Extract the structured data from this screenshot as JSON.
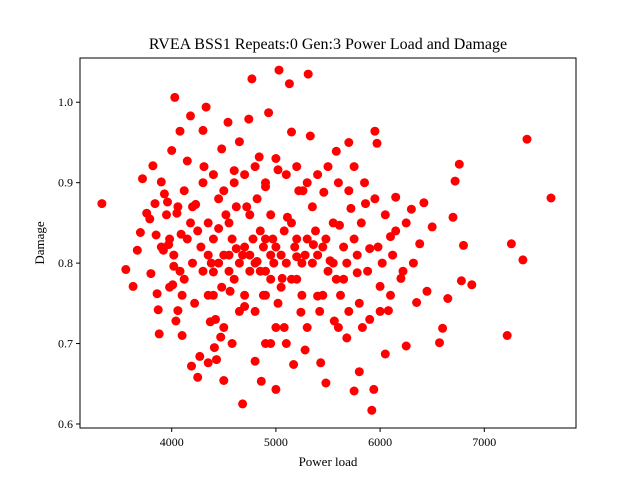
{
  "chart_data": {
    "type": "scatter",
    "title": "RVEA BSS1 Repeats:0 Gen:3 Power Load and Damage",
    "xlabel": "Power load",
    "ylabel": "Damage",
    "xlim": [
      3120,
      7880
    ],
    "ylim": [
      0.595,
      1.055
    ],
    "x_ticks": [
      4000,
      5000,
      6000,
      7000
    ],
    "y_ticks": [
      0.6,
      0.7,
      0.8,
      0.9,
      1.0
    ],
    "x_tick_labels": [
      "4000",
      "5000",
      "6000",
      "7000"
    ],
    "y_tick_labels": [
      "0.6",
      "0.7",
      "0.8",
      "0.9",
      "1.0"
    ],
    "grid": false,
    "legend": "none",
    "marker_color": "#ff0000",
    "series": [
      {
        "points": [
          [
            3330,
            0.874
          ],
          [
            3560,
            0.792
          ],
          [
            3630,
            0.771
          ],
          [
            3670,
            0.816
          ],
          [
            3700,
            0.838
          ],
          [
            3720,
            0.905
          ],
          [
            3760,
            0.862
          ],
          [
            3790,
            0.855
          ],
          [
            3800,
            0.787
          ],
          [
            3820,
            0.921
          ],
          [
            3840,
            0.874
          ],
          [
            3850,
            0.835
          ],
          [
            3860,
            0.762
          ],
          [
            3870,
            0.742
          ],
          [
            3880,
            0.712
          ],
          [
            3900,
            0.901
          ],
          [
            3920,
            0.816
          ],
          [
            3930,
            0.886
          ],
          [
            3960,
            0.876
          ],
          [
            3970,
            0.823
          ],
          [
            4000,
            0.94
          ],
          [
            4010,
            0.773
          ],
          [
            4020,
            0.796
          ],
          [
            4030,
            1.006
          ],
          [
            4040,
            0.728
          ],
          [
            4050,
            0.862
          ],
          [
            4060,
            0.741
          ],
          [
            4080,
            0.964
          ],
          [
            4090,
            0.836
          ],
          [
            4100,
            0.71
          ],
          [
            4120,
            0.78
          ],
          [
            4150,
            0.927
          ],
          [
            4180,
            0.983
          ],
          [
            4190,
            0.672
          ],
          [
            4230,
            0.873
          ],
          [
            4250,
            0.658
          ],
          [
            4270,
            0.684
          ],
          [
            4300,
            0.965
          ],
          [
            4310,
            0.92
          ],
          [
            4330,
            0.994
          ],
          [
            4350,
            0.676
          ],
          [
            4370,
            0.727
          ],
          [
            4400,
            0.789
          ],
          [
            4410,
            0.695
          ],
          [
            4430,
            0.68
          ],
          [
            4450,
            0.843
          ],
          [
            4470,
            0.708
          ],
          [
            4480,
            0.942
          ],
          [
            4500,
            0.654
          ],
          [
            4520,
            0.86
          ],
          [
            4540,
            0.975
          ],
          [
            4560,
            0.765
          ],
          [
            4580,
            0.7
          ],
          [
            4600,
            0.915
          ],
          [
            4620,
            0.818
          ],
          [
            4650,
            0.951
          ],
          [
            4680,
            0.625
          ],
          [
            4700,
            0.746
          ],
          [
            4720,
            0.87
          ],
          [
            4740,
            0.979
          ],
          [
            4770,
            1.029
          ],
          [
            4800,
            0.678
          ],
          [
            4820,
            0.802
          ],
          [
            4840,
            0.932
          ],
          [
            4860,
            0.653
          ],
          [
            4880,
            0.76
          ],
          [
            4900,
            0.895
          ],
          [
            4930,
            0.987
          ],
          [
            4950,
            0.7
          ],
          [
            4970,
            0.83
          ],
          [
            5000,
            0.643
          ],
          [
            5020,
            0.916
          ],
          [
            5030,
            1.04
          ],
          [
            5060,
            0.781
          ],
          [
            5080,
            0.72
          ],
          [
            5110,
            0.857
          ],
          [
            5130,
            1.023
          ],
          [
            5150,
            0.963
          ],
          [
            5170,
            0.674
          ],
          [
            5200,
            0.808
          ],
          [
            5240,
            0.739
          ],
          [
            5260,
            0.89
          ],
          [
            5280,
            0.692
          ],
          [
            5310,
            1.035
          ],
          [
            5330,
            0.958
          ],
          [
            5360,
            0.823
          ],
          [
            5400,
            0.759
          ],
          [
            5430,
            0.676
          ],
          [
            5460,
            0.888
          ],
          [
            5480,
            0.651
          ],
          [
            5520,
            0.803
          ],
          [
            5560,
            0.728
          ],
          [
            5580,
            0.939
          ],
          [
            5610,
            0.847
          ],
          [
            5650,
            0.78
          ],
          [
            5680,
            0.707
          ],
          [
            5700,
            0.95
          ],
          [
            5720,
            0.868
          ],
          [
            5750,
            0.641
          ],
          [
            5780,
            0.788
          ],
          [
            5800,
            0.665
          ],
          [
            5830,
            0.72
          ],
          [
            5860,
            0.874
          ],
          [
            5900,
            0.818
          ],
          [
            5920,
            0.617
          ],
          [
            5940,
            0.643
          ],
          [
            5950,
            0.964
          ],
          [
            5970,
            0.949
          ],
          [
            6000,
            0.771
          ],
          [
            6050,
            0.687
          ],
          [
            6080,
            0.741
          ],
          [
            6100,
            0.833
          ],
          [
            6150,
            0.882
          ],
          [
            6200,
            0.781
          ],
          [
            6250,
            0.697
          ],
          [
            6300,
            0.867
          ],
          [
            6350,
            0.751
          ],
          [
            6380,
            0.824
          ],
          [
            6420,
            0.875
          ],
          [
            6450,
            0.765
          ],
          [
            6500,
            0.845
          ],
          [
            6570,
            0.701
          ],
          [
            6600,
            0.719
          ],
          [
            6650,
            0.756
          ],
          [
            6700,
            0.857
          ],
          [
            6720,
            0.902
          ],
          [
            6760,
            0.923
          ],
          [
            6780,
            0.778
          ],
          [
            6800,
            0.822
          ],
          [
            6880,
            0.773
          ],
          [
            7220,
            0.71
          ],
          [
            7260,
            0.824
          ],
          [
            7370,
            0.804
          ],
          [
            7410,
            0.954
          ],
          [
            7640,
            0.881
          ],
          [
            4200,
            0.8
          ],
          [
            4300,
            0.79
          ],
          [
            4400,
            0.83
          ],
          [
            4500,
            0.81
          ],
          [
            4600,
            0.78
          ],
          [
            4700,
            0.82
          ],
          [
            4800,
            0.8
          ],
          [
            4900,
            0.79
          ],
          [
            5000,
            0.82
          ],
          [
            5100,
            0.8
          ],
          [
            5200,
            0.78
          ],
          [
            5300,
            0.83
          ],
          [
            5400,
            0.81
          ],
          [
            5500,
            0.79
          ],
          [
            4250,
            0.84
          ],
          [
            4350,
            0.76
          ],
          [
            4450,
            0.88
          ],
          [
            4550,
            0.85
          ],
          [
            4650,
            0.74
          ],
          [
            4750,
            0.86
          ],
          [
            4850,
            0.84
          ],
          [
            4950,
            0.86
          ],
          [
            5050,
            0.77
          ],
          [
            5150,
            0.85
          ],
          [
            5250,
            0.76
          ],
          [
            5350,
            0.87
          ],
          [
            5450,
            0.76
          ],
          [
            5550,
            0.85
          ],
          [
            5650,
            0.82
          ],
          [
            4150,
            0.83
          ],
          [
            4350,
            0.85
          ],
          [
            4550,
            0.81
          ],
          [
            4750,
            0.79
          ],
          [
            4950,
            0.81
          ],
          [
            5150,
            0.78
          ],
          [
            5350,
            0.8
          ],
          [
            5550,
            0.8
          ],
          [
            5750,
            0.83
          ],
          [
            4120,
            0.89
          ],
          [
            4220,
            0.75
          ],
          [
            4420,
            0.73
          ],
          [
            4620,
            0.87
          ],
          [
            4820,
            0.88
          ],
          [
            5020,
            0.75
          ],
          [
            5220,
            0.89
          ],
          [
            5420,
            0.74
          ],
          [
            5620,
            0.76
          ],
          [
            5820,
            0.85
          ],
          [
            4080,
            0.79
          ],
          [
            4180,
            0.85
          ],
          [
            4280,
            0.82
          ],
          [
            4380,
            0.8
          ],
          [
            4480,
            0.77
          ],
          [
            4580,
            0.83
          ],
          [
            4680,
            0.81
          ],
          [
            4780,
            0.83
          ],
          [
            4880,
            0.82
          ],
          [
            4980,
            0.8
          ],
          [
            5080,
            0.84
          ],
          [
            5180,
            0.82
          ],
          [
            5280,
            0.81
          ],
          [
            5380,
            0.84
          ],
          [
            5480,
            0.83
          ],
          [
            5580,
            0.78
          ],
          [
            5680,
            0.8
          ],
          [
            5780,
            0.81
          ],
          [
            5880,
            0.79
          ],
          [
            5980,
            0.82
          ],
          [
            3950,
            0.86
          ],
          [
            3980,
            0.83
          ],
          [
            4020,
            0.81
          ],
          [
            4060,
            0.87
          ],
          [
            6020,
            0.8
          ],
          [
            6120,
            0.81
          ],
          [
            6220,
            0.79
          ],
          [
            6320,
            0.8
          ],
          [
            4700,
            0.76
          ],
          [
            4800,
            0.74
          ],
          [
            4900,
            0.76
          ],
          [
            5000,
            0.72
          ],
          [
            4600,
            0.9
          ],
          [
            4700,
            0.91
          ],
          [
            4800,
            0.92
          ],
          [
            4900,
            0.9
          ],
          [
            5000,
            0.93
          ],
          [
            5100,
            0.91
          ],
          [
            5200,
            0.92
          ],
          [
            5300,
            0.9
          ],
          [
            5400,
            0.91
          ],
          [
            5500,
            0.92
          ],
          [
            4400,
            0.91
          ],
          [
            4500,
            0.89
          ],
          [
            4300,
            0.9
          ],
          [
            5600,
            0.9
          ],
          [
            5700,
            0.89
          ],
          [
            4900,
            0.7
          ],
          [
            5100,
            0.7
          ],
          [
            5300,
            0.72
          ],
          [
            4500,
            0.72
          ],
          [
            4400,
            0.76
          ],
          [
            5200,
            0.83
          ],
          [
            4900,
            0.83
          ],
          [
            4750,
            0.81
          ],
          [
            5050,
            0.81
          ],
          [
            4850,
            0.79
          ],
          [
            4650,
            0.8
          ],
          [
            5250,
            0.8
          ],
          [
            4950,
            0.78
          ],
          [
            4550,
            0.79
          ],
          [
            5450,
            0.82
          ],
          [
            4350,
            0.81
          ],
          [
            4450,
            0.8
          ],
          [
            3980,
            0.77
          ],
          [
            4100,
            0.76
          ],
          [
            3900,
            0.82
          ],
          [
            4200,
            0.87
          ],
          [
            6150,
            0.84
          ],
          [
            6250,
            0.85
          ],
          [
            6050,
            0.86
          ],
          [
            5950,
            0.88
          ],
          [
            5850,
            0.9
          ],
          [
            5750,
            0.92
          ],
          [
            6100,
            0.76
          ],
          [
            6000,
            0.74
          ],
          [
            5900,
            0.73
          ],
          [
            5800,
            0.75
          ],
          [
            5700,
            0.74
          ],
          [
            5600,
            0.72
          ]
        ]
      }
    ]
  }
}
